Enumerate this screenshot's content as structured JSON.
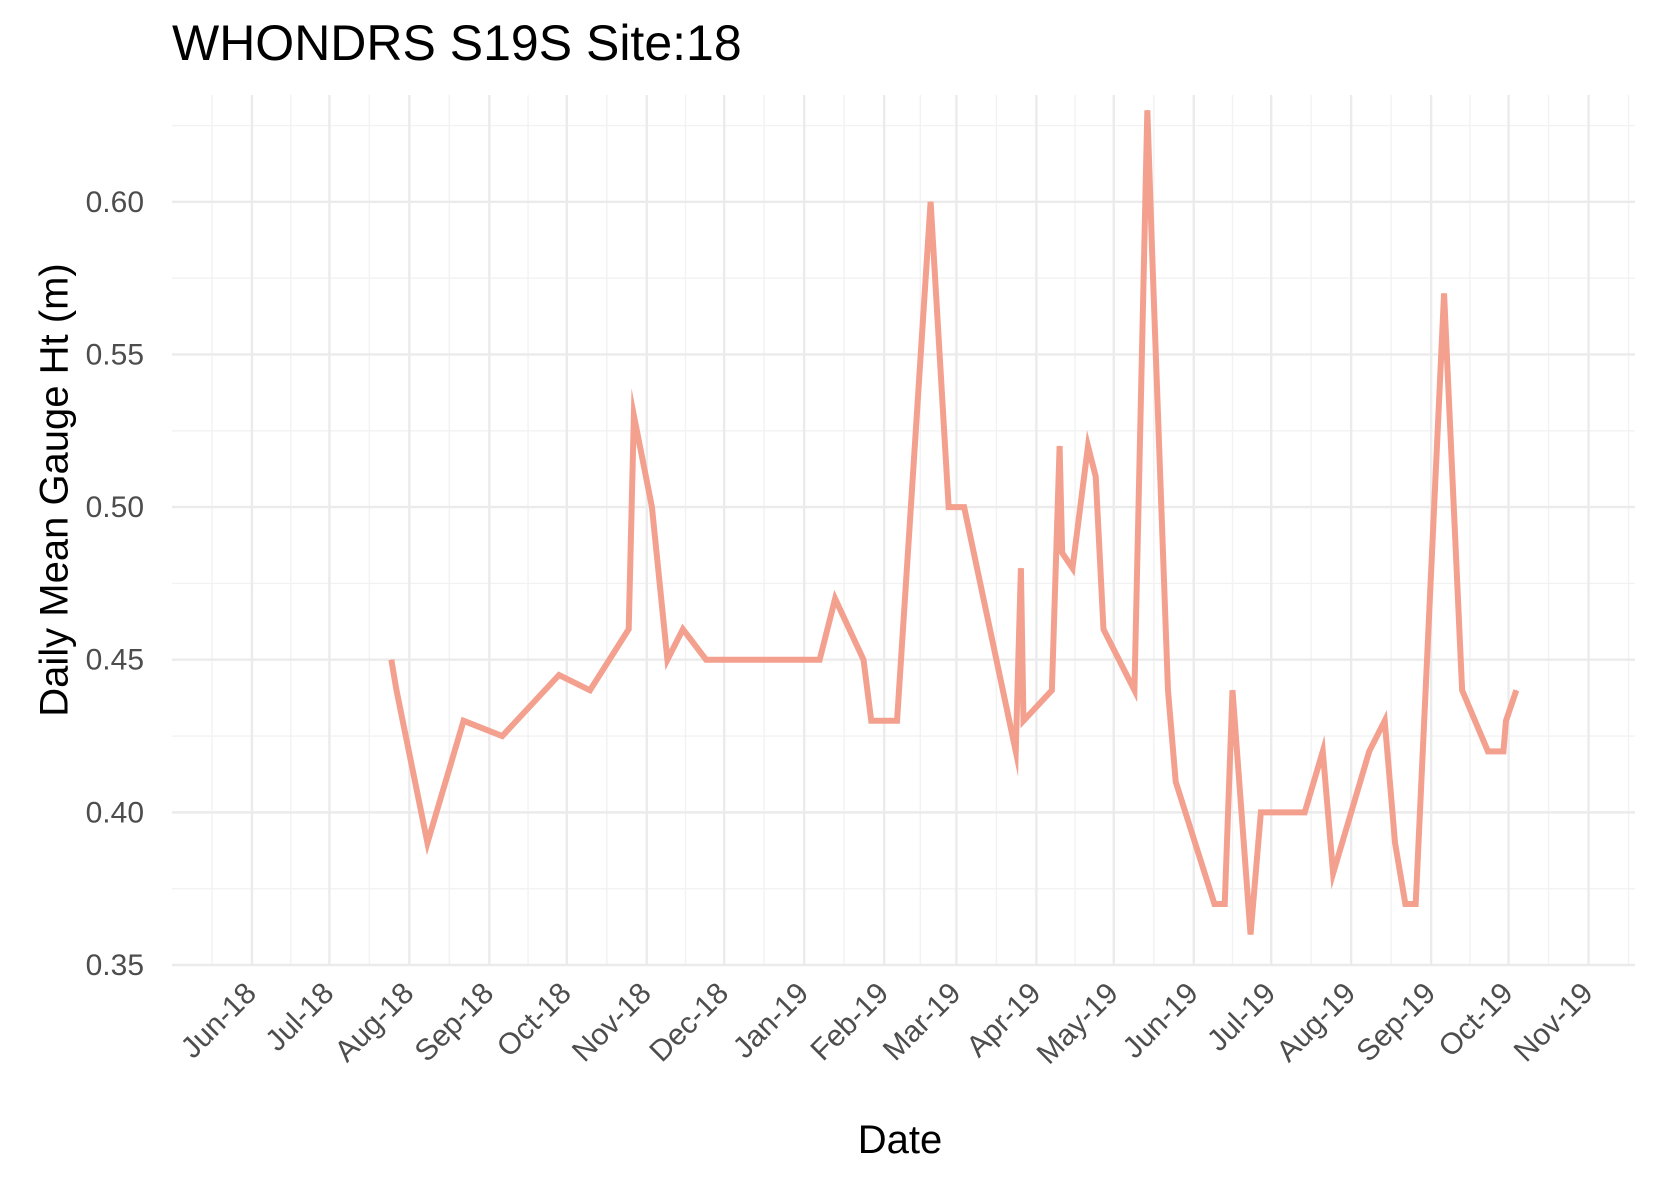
{
  "chart_data": {
    "type": "line",
    "title": "WHONDRS S19S Site:18",
    "xlabel": "Date",
    "ylabel": "Daily Mean Gauge Ht (m)",
    "x_ticks": [
      "Jun-18",
      "Jul-18",
      "Aug-18",
      "Sep-18",
      "Oct-18",
      "Nov-18",
      "Dec-18",
      "Jan-19",
      "Feb-19",
      "Mar-19",
      "Apr-19",
      "May-19",
      "Jun-19",
      "Jul-19",
      "Aug-19",
      "Sep-19",
      "Oct-19",
      "Nov-19"
    ],
    "y_ticks": [
      "0.35",
      "0.40",
      "0.45",
      "0.50",
      "0.55",
      "0.60"
    ],
    "xlim": [
      "2018-05-01",
      "2019-11-19"
    ],
    "ylim": [
      0.35,
      0.635
    ],
    "grid": true,
    "line_color": "#f4a08f",
    "series": [
      {
        "points": [
          [
            "2018-07-25",
            0.45
          ],
          [
            "2018-07-27",
            0.44
          ],
          [
            "2018-08-08",
            0.39
          ],
          [
            "2018-08-22",
            0.43
          ],
          [
            "2018-09-06",
            0.425
          ],
          [
            "2018-09-28",
            0.445
          ],
          [
            "2018-10-10",
            0.44
          ],
          [
            "2018-10-25",
            0.46
          ],
          [
            "2018-10-27",
            0.53
          ],
          [
            "2018-11-03",
            0.5
          ],
          [
            "2018-11-09",
            0.45
          ],
          [
            "2018-11-15",
            0.46
          ],
          [
            "2018-11-24",
            0.45
          ],
          [
            "2019-01-07",
            0.45
          ],
          [
            "2019-01-13",
            0.47
          ],
          [
            "2019-01-24",
            0.45
          ],
          [
            "2019-01-27",
            0.43
          ],
          [
            "2019-02-06",
            0.43
          ],
          [
            "2019-02-19",
            0.6
          ],
          [
            "2019-02-26",
            0.5
          ],
          [
            "2019-03-04",
            0.5
          ],
          [
            "2019-03-24",
            0.42
          ],
          [
            "2019-03-26",
            0.48
          ],
          [
            "2019-03-27",
            0.43
          ],
          [
            "2019-04-07",
            0.44
          ],
          [
            "2019-04-10",
            0.52
          ],
          [
            "2019-04-11",
            0.485
          ],
          [
            "2019-04-15",
            0.48
          ],
          [
            "2019-04-21",
            0.52
          ],
          [
            "2019-04-24",
            0.51
          ],
          [
            "2019-04-27",
            0.46
          ],
          [
            "2019-05-09",
            0.44
          ],
          [
            "2019-05-14",
            0.63
          ],
          [
            "2019-05-16",
            0.58
          ],
          [
            "2019-05-22",
            0.44
          ],
          [
            "2019-05-25",
            0.41
          ],
          [
            "2019-06-09",
            0.37
          ],
          [
            "2019-06-13",
            0.37
          ],
          [
            "2019-06-16",
            0.44
          ],
          [
            "2019-06-23",
            0.36
          ],
          [
            "2019-06-27",
            0.4
          ],
          [
            "2019-07-14",
            0.4
          ],
          [
            "2019-07-21",
            0.42
          ],
          [
            "2019-07-25",
            0.38
          ],
          [
            "2019-08-08",
            0.42
          ],
          [
            "2019-08-14",
            0.43
          ],
          [
            "2019-08-18",
            0.39
          ],
          [
            "2019-08-22",
            0.37
          ],
          [
            "2019-08-26",
            0.37
          ],
          [
            "2019-09-06",
            0.57
          ],
          [
            "2019-09-13",
            0.44
          ],
          [
            "2019-09-23",
            0.42
          ],
          [
            "2019-09-29",
            0.42
          ],
          [
            "2019-09-30",
            0.43
          ],
          [
            "2019-10-04",
            0.44
          ]
        ]
      }
    ]
  }
}
